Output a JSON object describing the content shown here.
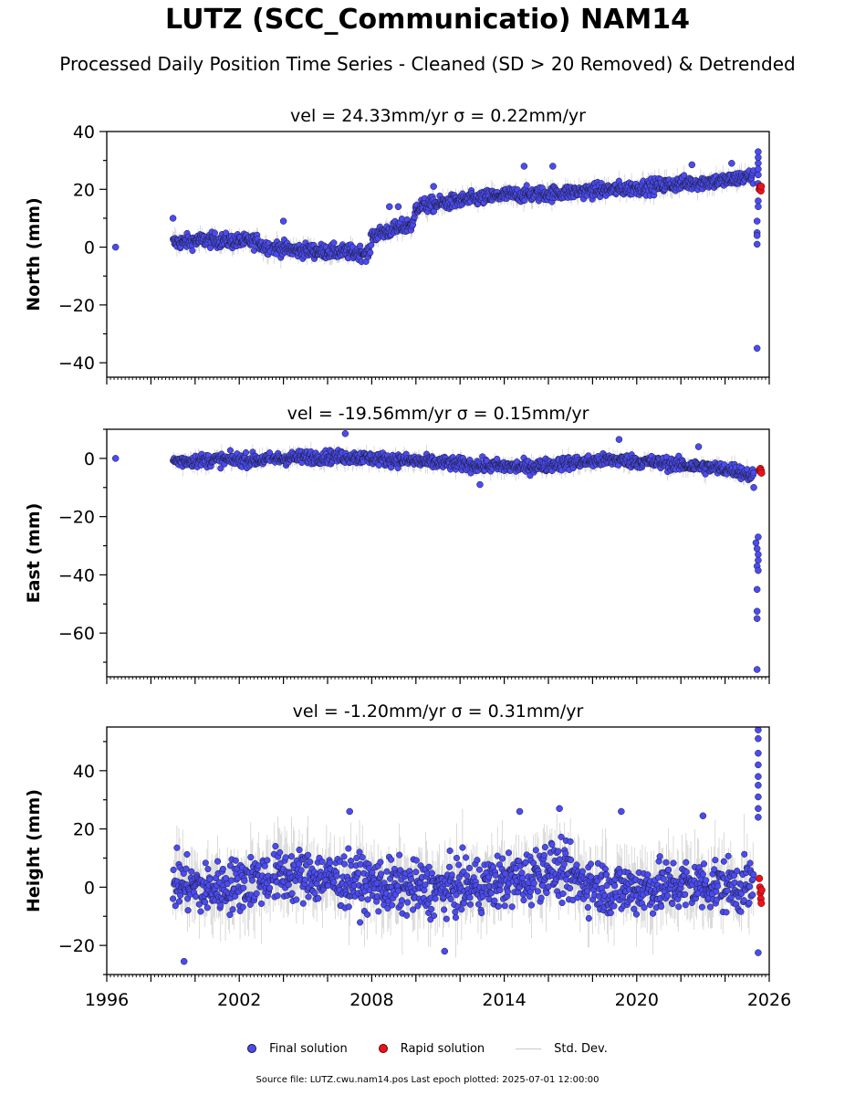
{
  "title": "LUTZ (SCC_Communicatio) NAM14",
  "subtitle": "Processed Daily Position Time Series - Cleaned (SD > 20 Removed) & Detrended",
  "legend": {
    "final": "Final solution",
    "rapid": "Rapid solution",
    "std": "Std. Dev."
  },
  "footer": "Source file: LUTZ.cwu.nam14.pos  Last epoch plotted: 2025-07-01 12:00:00",
  "colors": {
    "final": "#4b4bf2",
    "rapid": "#e8141c",
    "std": "#9a9a9a",
    "edge": "#1a1a2a"
  },
  "chart_data": [
    {
      "type": "scatter",
      "title": "vel = 24.33mm/yr   σ = 0.22mm/yr",
      "ylabel": "North (mm)",
      "xlim": [
        1996,
        2026
      ],
      "ylim": [
        -45,
        40
      ],
      "xticks": [],
      "yticks": [
        -40,
        -20,
        0,
        20,
        40
      ],
      "profile": [
        [
          1996.4,
          0
        ],
        [
          1999.0,
          1.5
        ],
        [
          2000.5,
          2.5
        ],
        [
          2002.0,
          2.0
        ],
        [
          2002.9,
          2.0
        ],
        [
          2003.0,
          0.5
        ],
        [
          2004.5,
          -1
        ],
        [
          2006.0,
          -1.5
        ],
        [
          2007.9,
          -2
        ],
        [
          2008.0,
          4
        ],
        [
          2009.4,
          7
        ],
        [
          2009.9,
          8
        ],
        [
          2010.0,
          14
        ],
        [
          2011.0,
          15
        ],
        [
          2012.0,
          16
        ],
        [
          2014.0,
          18
        ],
        [
          2016.0,
          18.5
        ],
        [
          2018.0,
          19.5
        ],
        [
          2020.0,
          20.5
        ],
        [
          2022.0,
          22
        ],
        [
          2024.0,
          23
        ],
        [
          2025.2,
          24.5
        ]
      ],
      "noise": 1.8,
      "outliers": [
        [
          1996.4,
          0
        ],
        [
          2025.5,
          33
        ],
        [
          2025.5,
          31
        ],
        [
          2025.5,
          29
        ],
        [
          2025.5,
          27
        ],
        [
          2025.5,
          25
        ],
        [
          2025.5,
          22
        ],
        [
          2025.5,
          16
        ],
        [
          2025.5,
          14
        ],
        [
          2025.45,
          9
        ],
        [
          2025.45,
          5
        ],
        [
          2025.45,
          4
        ],
        [
          2025.45,
          1
        ],
        [
          2025.45,
          -35
        ],
        [
          2014.9,
          28
        ],
        [
          2016.2,
          28
        ],
        [
          2008.8,
          14
        ],
        [
          2009.2,
          14
        ],
        [
          2004.0,
          9
        ],
        [
          1999.0,
          10
        ],
        [
          2010.8,
          21
        ],
        [
          2024.3,
          29
        ],
        [
          2022.5,
          28.5
        ]
      ],
      "rapid": [
        [
          2025.55,
          20
        ],
        [
          2025.58,
          21
        ],
        [
          2025.6,
          20.5
        ],
        [
          2025.62,
          19.5
        ],
        [
          2025.64,
          21
        ]
      ]
    },
    {
      "type": "scatter",
      "title": "vel = -19.56mm/yr   σ = 0.15mm/yr",
      "ylabel": "East (mm)",
      "xlim": [
        1996,
        2026
      ],
      "ylim": [
        -75,
        10
      ],
      "xticks": [],
      "yticks": [
        -60,
        -40,
        -20,
        0
      ],
      "profile": [
        [
          1996.4,
          0
        ],
        [
          1999.0,
          -1
        ],
        [
          2001.0,
          -0.5
        ],
        [
          2003.0,
          -0.5
        ],
        [
          2005.0,
          0.5
        ],
        [
          2007.0,
          0.5
        ],
        [
          2009.0,
          -0.5
        ],
        [
          2011.0,
          -1.5
        ],
        [
          2013.0,
          -2.5
        ],
        [
          2015.0,
          -3
        ],
        [
          2017.0,
          -1.5
        ],
        [
          2019.0,
          -0.5
        ],
        [
          2021.0,
          -1.5
        ],
        [
          2023.0,
          -3
        ],
        [
          2024.5,
          -4
        ],
        [
          2025.2,
          -6
        ]
      ],
      "noise": 1.6,
      "outliers": [
        [
          1996.4,
          0
        ],
        [
          2006.8,
          8.5
        ],
        [
          2012.9,
          -9
        ],
        [
          2019.2,
          6.5
        ],
        [
          2022.8,
          4
        ],
        [
          2025.3,
          -10
        ],
        [
          2025.4,
          -29
        ],
        [
          2025.45,
          -31
        ],
        [
          2025.5,
          -33
        ],
        [
          2025.5,
          -35
        ],
        [
          2025.45,
          -37
        ],
        [
          2025.5,
          -27
        ],
        [
          2025.5,
          -38.5
        ],
        [
          2025.45,
          -45
        ],
        [
          2025.45,
          -52.5
        ],
        [
          2025.45,
          -55
        ],
        [
          2025.45,
          -72.5
        ]
      ],
      "rapid": [
        [
          2025.55,
          -4
        ],
        [
          2025.58,
          -4.5
        ],
        [
          2025.6,
          -3.5
        ],
        [
          2025.63,
          -4.2
        ],
        [
          2025.65,
          -5
        ]
      ]
    },
    {
      "type": "scatter",
      "title": "vel = -1.20mm/yr   σ = 0.31mm/yr",
      "ylabel": "Height (mm)",
      "xlim": [
        1996,
        2026
      ],
      "ylim": [
        -30,
        55
      ],
      "xticks": [
        1996,
        2002,
        2008,
        2014,
        2020,
        2026
      ],
      "yticks": [
        -20,
        0,
        20,
        40
      ],
      "profile": [
        [
          1999.0,
          2
        ],
        [
          2000.5,
          -1
        ],
        [
          2002.0,
          1
        ],
        [
          2003.5,
          4
        ],
        [
          2005.0,
          4
        ],
        [
          2007.0,
          2
        ],
        [
          2009.0,
          0
        ],
        [
          2011.0,
          -1
        ],
        [
          2013.0,
          1
        ],
        [
          2015.0,
          3
        ],
        [
          2016.0,
          7
        ],
        [
          2017.5,
          2
        ],
        [
          2019.0,
          -1
        ],
        [
          2021.0,
          0
        ],
        [
          2023.0,
          1
        ],
        [
          2025.2,
          0
        ]
      ],
      "noise": 6.5,
      "outliers": [
        [
          2025.5,
          54
        ],
        [
          2025.5,
          51
        ],
        [
          2025.5,
          46
        ],
        [
          2025.5,
          42
        ],
        [
          2025.5,
          38
        ],
        [
          2025.5,
          35
        ],
        [
          2025.5,
          31
        ],
        [
          2025.5,
          27
        ],
        [
          2025.5,
          24
        ],
        [
          2025.5,
          -22.5
        ],
        [
          1999.5,
          -25.5
        ],
        [
          2011.3,
          -22
        ],
        [
          2007.0,
          26
        ],
        [
          2014.7,
          26
        ],
        [
          2019.3,
          26
        ],
        [
          2023.0,
          24.5
        ],
        [
          2016.5,
          27
        ]
      ],
      "rapid": [
        [
          2025.55,
          3
        ],
        [
          2025.58,
          0
        ],
        [
          2025.6,
          -2
        ],
        [
          2025.62,
          -4
        ],
        [
          2025.64,
          -5.5
        ],
        [
          2025.66,
          -1
        ]
      ]
    }
  ]
}
